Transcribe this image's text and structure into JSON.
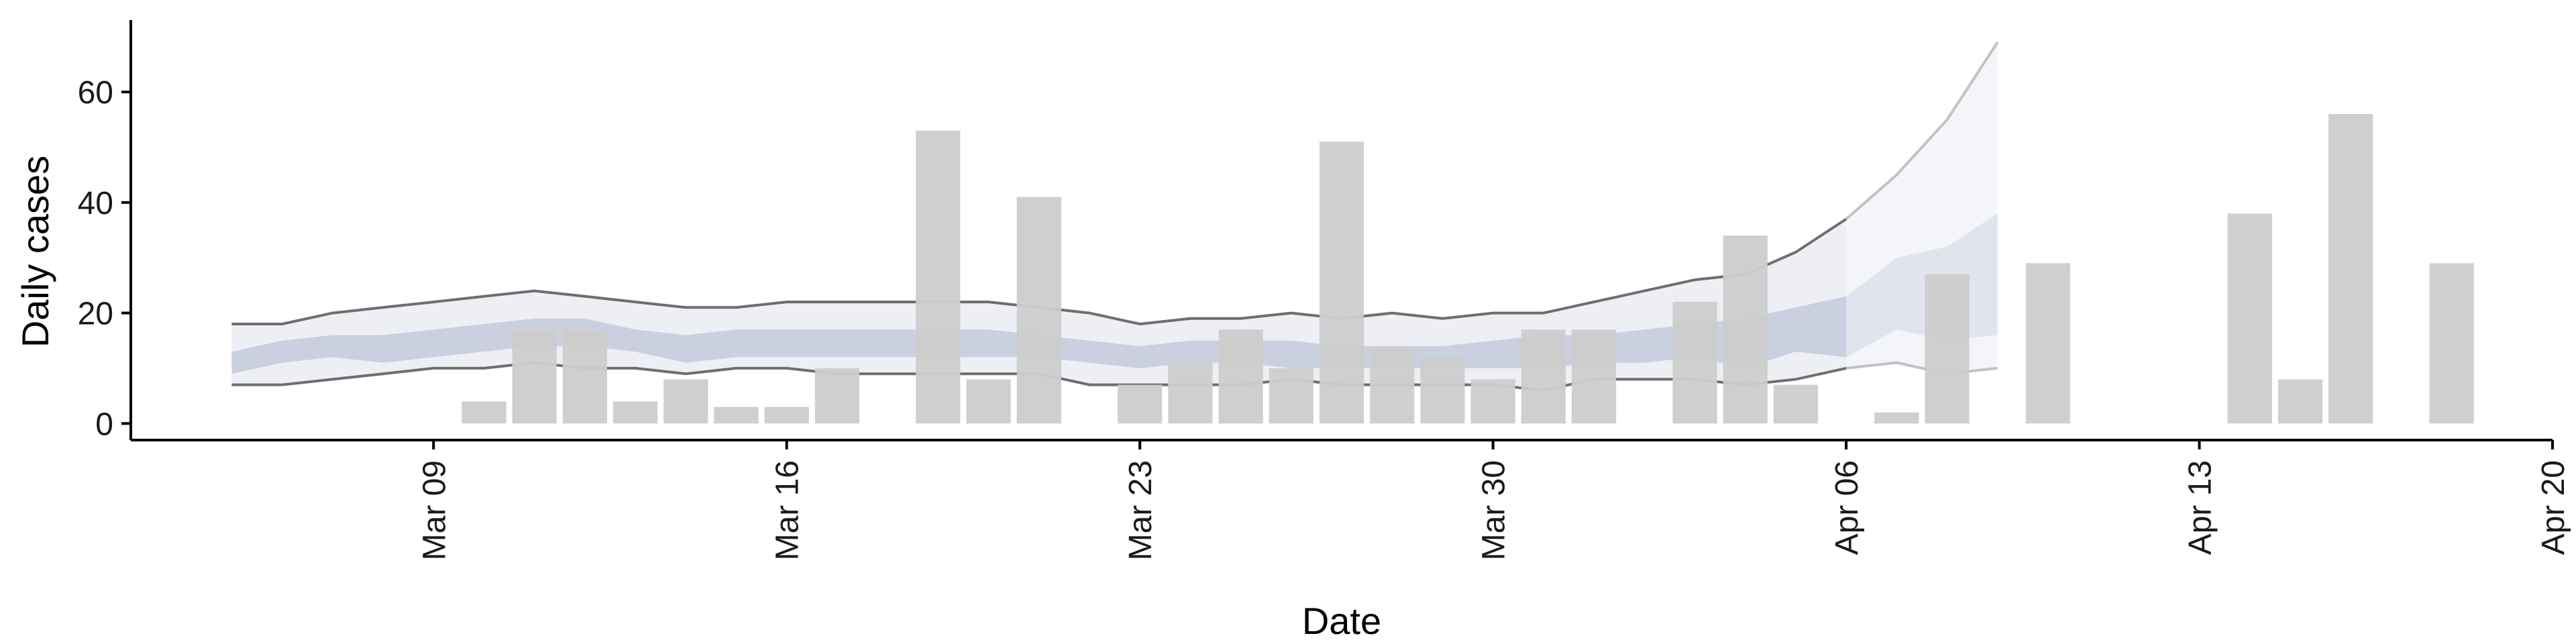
{
  "chart_data": {
    "type": "bar",
    "title": "",
    "xlabel": "Date",
    "ylabel": "Daily cases",
    "x_ticks": [
      "Mar 09",
      "Mar 16",
      "Mar 23",
      "Mar 30",
      "Apr 06",
      "Apr 13",
      "Apr 20"
    ],
    "y_ticks": [
      0,
      20,
      40,
      60
    ],
    "xlim": [
      "2020-03-03",
      "2020-04-20"
    ],
    "ylim": [
      -3,
      73
    ],
    "grid": false,
    "legend": "none",
    "bars": {
      "color": "#cccccc",
      "dates": [
        "2020-03-10",
        "2020-03-11",
        "2020-03-12",
        "2020-03-13",
        "2020-03-14",
        "2020-03-15",
        "2020-03-16",
        "2020-03-17",
        "2020-03-19",
        "2020-03-20",
        "2020-03-21",
        "2020-03-23",
        "2020-03-24",
        "2020-03-25",
        "2020-03-26",
        "2020-03-27",
        "2020-03-28",
        "2020-03-29",
        "2020-03-30",
        "2020-03-31",
        "2020-04-01",
        "2020-04-03",
        "2020-04-04",
        "2020-04-05",
        "2020-04-07",
        "2020-04-08",
        "2020-04-10",
        "2020-04-14",
        "2020-04-15",
        "2020-04-16",
        "2020-04-18"
      ],
      "values": [
        4,
        17,
        17,
        4,
        8,
        3,
        3,
        10,
        53,
        8,
        41,
        7,
        11,
        17,
        10,
        51,
        14,
        12,
        8,
        17,
        17,
        22,
        34,
        7,
        2,
        27,
        29,
        38,
        8,
        56,
        29
      ]
    },
    "estimate": {
      "band_color": "#aeb6d0",
      "line_color": "#6e6e6e",
      "dates": [
        "2020-03-05",
        "2020-03-06",
        "2020-03-07",
        "2020-03-08",
        "2020-03-09",
        "2020-03-10",
        "2020-03-11",
        "2020-03-12",
        "2020-03-13",
        "2020-03-14",
        "2020-03-15",
        "2020-03-16",
        "2020-03-17",
        "2020-03-18",
        "2020-03-19",
        "2020-03-20",
        "2020-03-21",
        "2020-03-22",
        "2020-03-23",
        "2020-03-24",
        "2020-03-25",
        "2020-03-26",
        "2020-03-27",
        "2020-03-28",
        "2020-03-29",
        "2020-03-30",
        "2020-03-31",
        "2020-04-01",
        "2020-04-02",
        "2020-04-03",
        "2020-04-04",
        "2020-04-05",
        "2020-04-06",
        "2020-04-07",
        "2020-04-08",
        "2020-04-09"
      ],
      "upper": [
        18,
        18,
        20,
        21,
        22,
        23,
        24,
        23,
        22,
        21,
        21,
        22,
        22,
        22,
        22,
        22,
        21,
        20,
        18,
        19,
        19,
        20,
        19,
        20,
        19,
        20,
        20,
        22,
        24,
        26,
        27,
        31,
        37,
        45,
        55,
        69
      ],
      "inner_upper": [
        13,
        15,
        16,
        16,
        17,
        18,
        19,
        19,
        17,
        16,
        17,
        17,
        17,
        17,
        17,
        17,
        16,
        15,
        14,
        15,
        15,
        15,
        14,
        14,
        14,
        15,
        16,
        16,
        17,
        18,
        19,
        21,
        23,
        30,
        32,
        38
      ],
      "inner_lower": [
        9,
        11,
        12,
        11,
        12,
        13,
        14,
        14,
        13,
        11,
        12,
        12,
        12,
        12,
        12,
        12,
        12,
        11,
        10,
        11,
        11,
        10,
        10,
        10,
        10,
        10,
        10,
        11,
        11,
        12,
        10,
        13,
        12,
        17,
        15,
        16
      ],
      "lower": [
        7,
        7,
        8,
        9,
        10,
        10,
        11,
        10,
        10,
        9,
        10,
        10,
        9,
        9,
        9,
        9,
        9,
        7,
        7,
        7,
        7,
        8,
        7,
        7,
        7,
        7,
        6,
        8,
        8,
        8,
        7,
        8,
        10,
        11,
        9,
        10
      ]
    },
    "forecast_start": "2020-04-06"
  }
}
